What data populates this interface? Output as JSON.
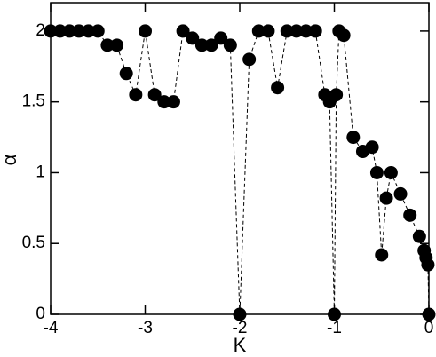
{
  "chart_data": {
    "type": "scatter",
    "x_label": "K",
    "y_label": "α",
    "x": [
      -4,
      -3.9,
      -3.8,
      -3.7,
      -3.6,
      -3.5,
      -3.4,
      -3.3,
      -3.2,
      -3.1,
      -3.0,
      -2.9,
      -2.8,
      -2.7,
      -2.6,
      -2.5,
      -2.4,
      -2.3,
      -2.2,
      -2.1,
      -2.0,
      -1.9,
      -1.8,
      -1.7,
      -1.6,
      -1.5,
      -1.4,
      -1.3,
      -1.2,
      -1.1,
      -1.05,
      -1.0,
      -0.98,
      -0.95,
      -0.9,
      -0.8,
      -0.7,
      -0.6,
      -0.55,
      -0.5,
      -0.45,
      -0.4,
      -0.3,
      -0.2,
      -0.1,
      -0.05,
      -0.03,
      -0.01,
      0
    ],
    "values": [
      2,
      2,
      2,
      2,
      2,
      2,
      1.9,
      1.9,
      1.7,
      1.55,
      2,
      1.55,
      1.5,
      1.5,
      2,
      1.95,
      1.9,
      1.9,
      1.95,
      1.9,
      0,
      1.8,
      2,
      2,
      1.6,
      2,
      2,
      2,
      2,
      1.55,
      1.5,
      0,
      1.55,
      2,
      1.97,
      1.25,
      1.15,
      1.18,
      1,
      0.42,
      0.82,
      1,
      0.85,
      0.7,
      0.55,
      0.45,
      0.4,
      0.35,
      0
    ],
    "color": "#000000",
    "xlim": [
      -4,
      0
    ],
    "ylim": [
      0,
      2.2
    ],
    "xticks": [
      -4,
      -3,
      -2,
      -1,
      0
    ],
    "yticks": [
      0,
      0.5,
      1,
      1.5,
      2
    ]
  }
}
